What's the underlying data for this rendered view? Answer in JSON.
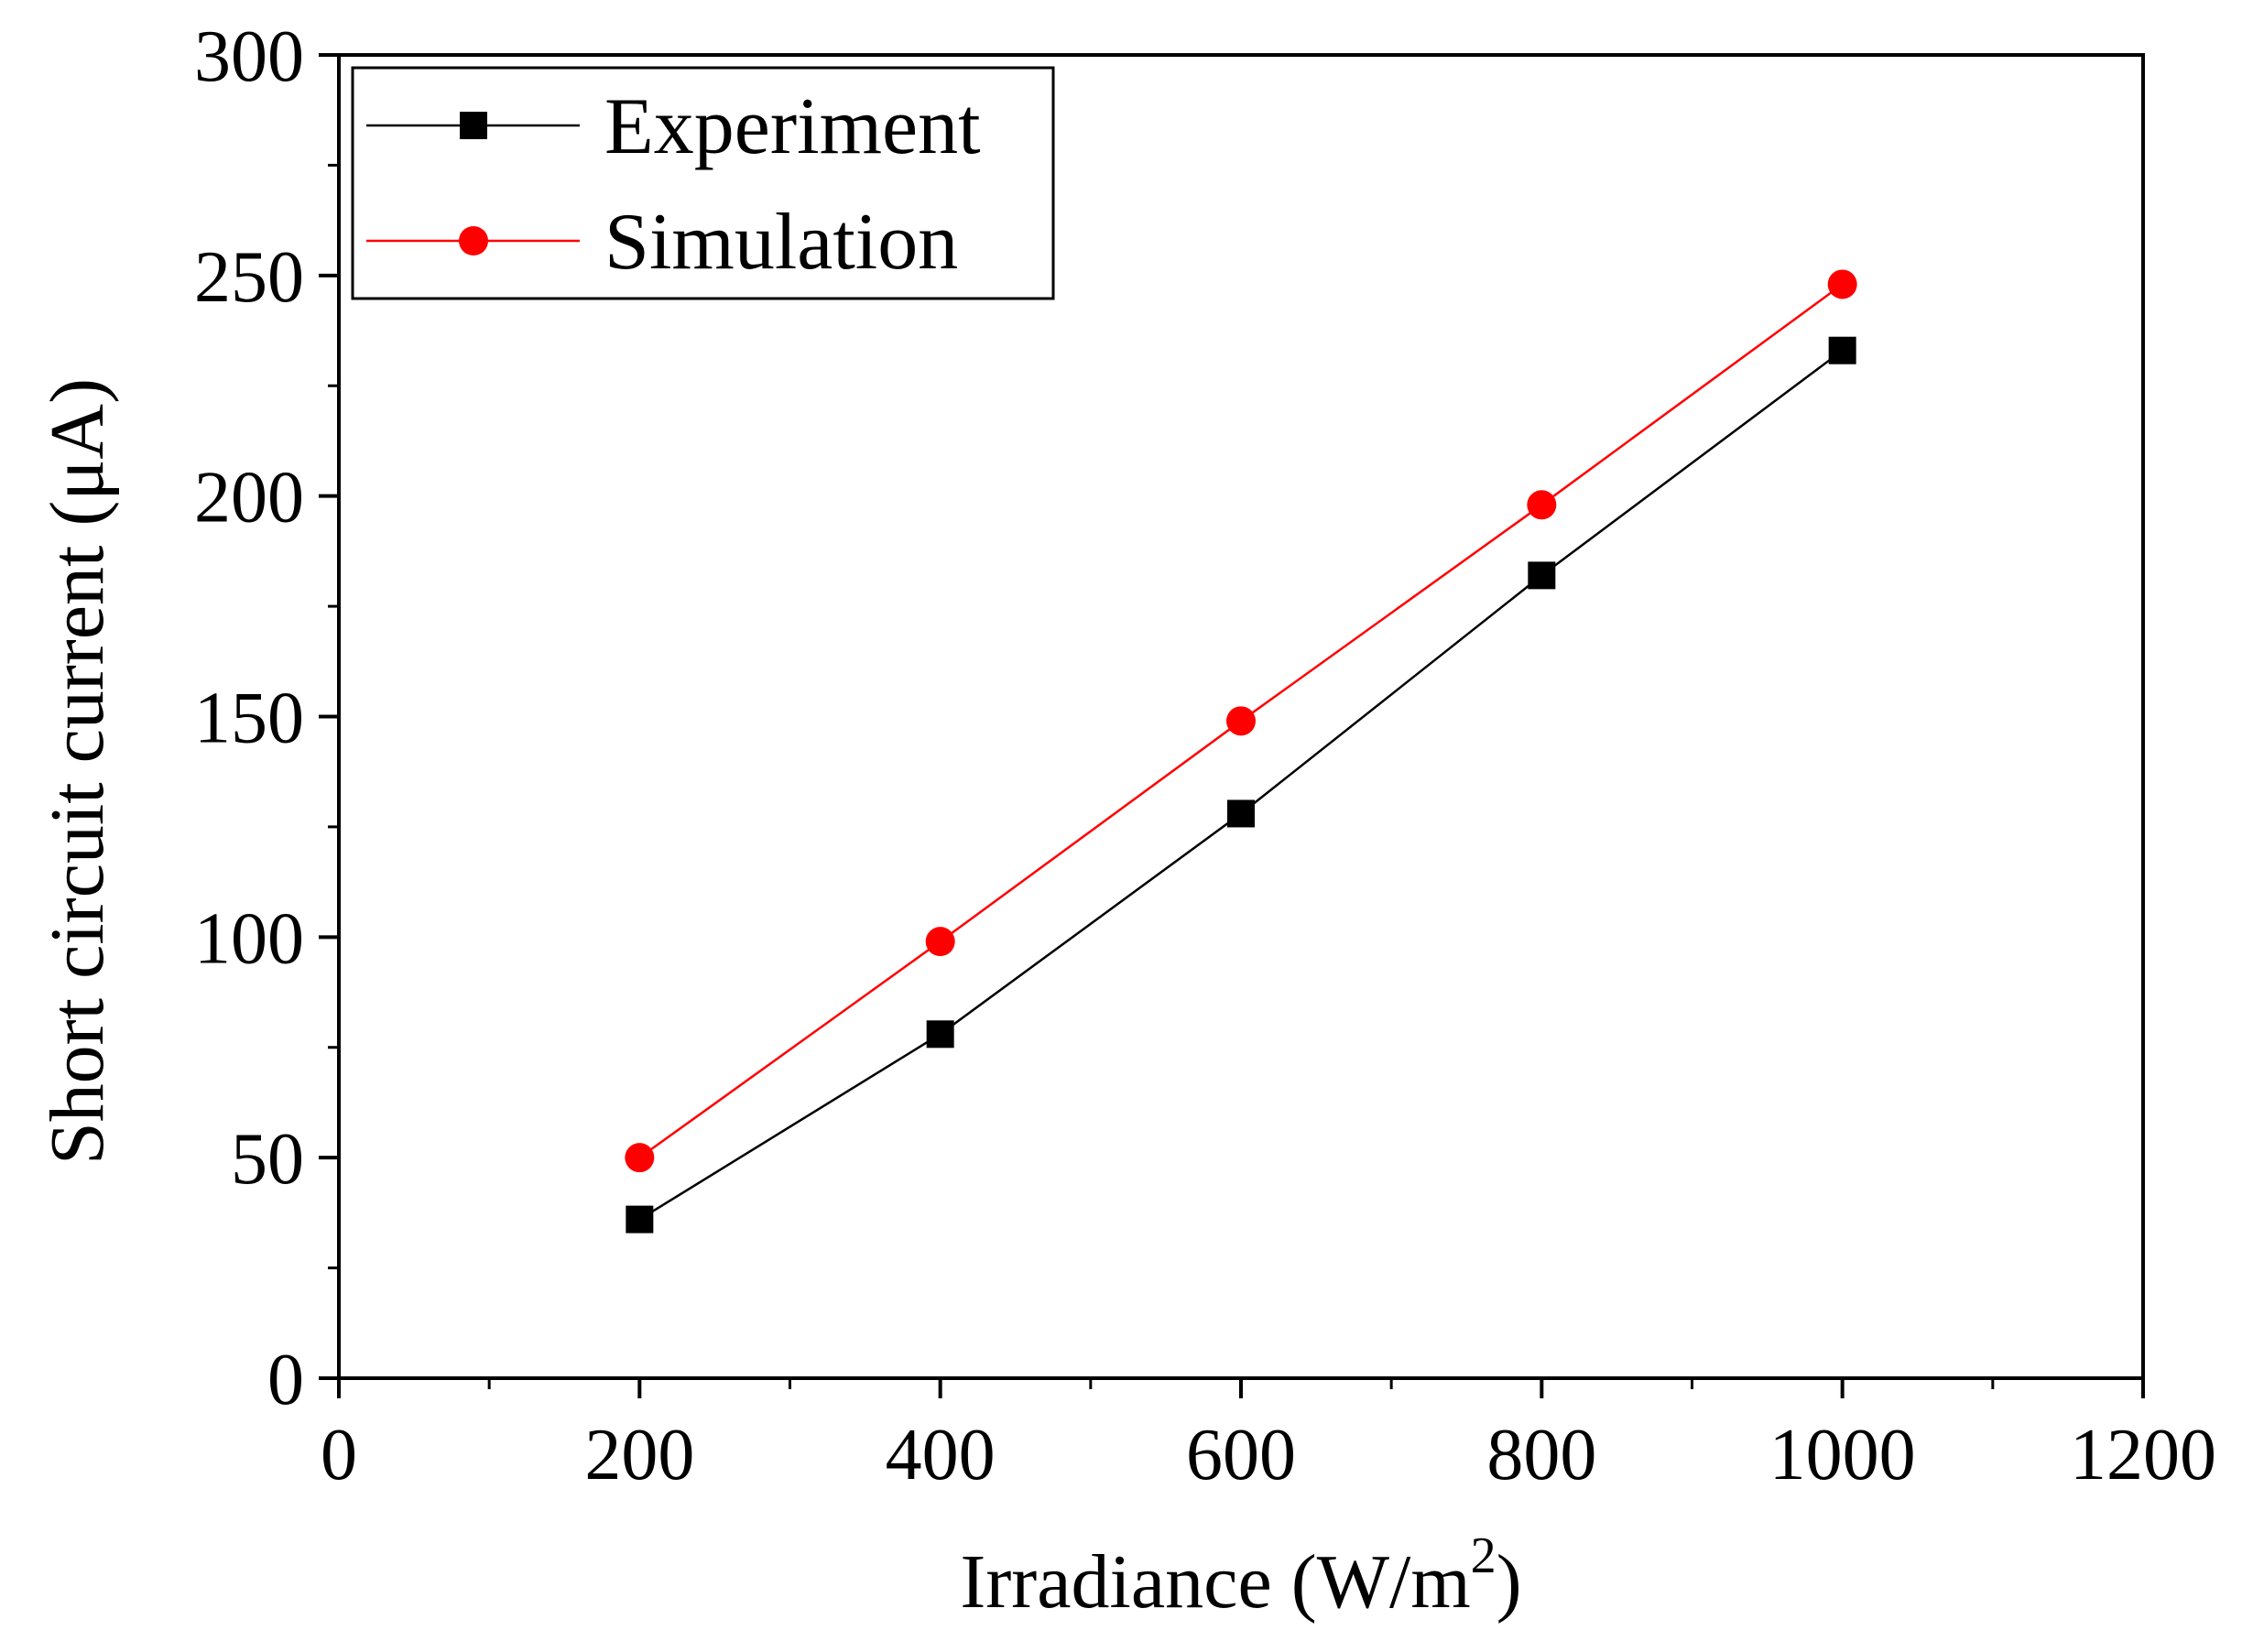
{
  "chart_data": {
    "type": "line",
    "title": "",
    "xlabel": "Irradiance (W/m",
    "xlabel_superscript": "2",
    "xlabel_suffix": ")",
    "ylabel": "Short circuit current (μA)",
    "xlim": [
      0,
      1200
    ],
    "ylim": [
      0,
      300
    ],
    "x_ticks": [
      0,
      200,
      400,
      600,
      800,
      1000,
      1200
    ],
    "y_ticks": [
      0,
      50,
      100,
      150,
      200,
      250,
      300
    ],
    "x_tick_labels": [
      "0",
      "200",
      "400",
      "600",
      "800",
      "1000",
      "1200"
    ],
    "y_tick_labels": [
      "0",
      "50",
      "100",
      "150",
      "200",
      "250",
      "300"
    ],
    "x_minor_step": 100,
    "y_minor_step": 25,
    "grid": false,
    "legend_position": "top-left",
    "x": [
      200,
      400,
      600,
      800,
      1000
    ],
    "series": [
      {
        "name": "Experiment",
        "marker": "square",
        "color": "#000000",
        "values": [
          36,
          78,
          128,
          182,
          233
        ]
      },
      {
        "name": "Simulation",
        "marker": "circle",
        "color": "#ff0000",
        "values": [
          50,
          99,
          149,
          198,
          248
        ]
      }
    ]
  }
}
